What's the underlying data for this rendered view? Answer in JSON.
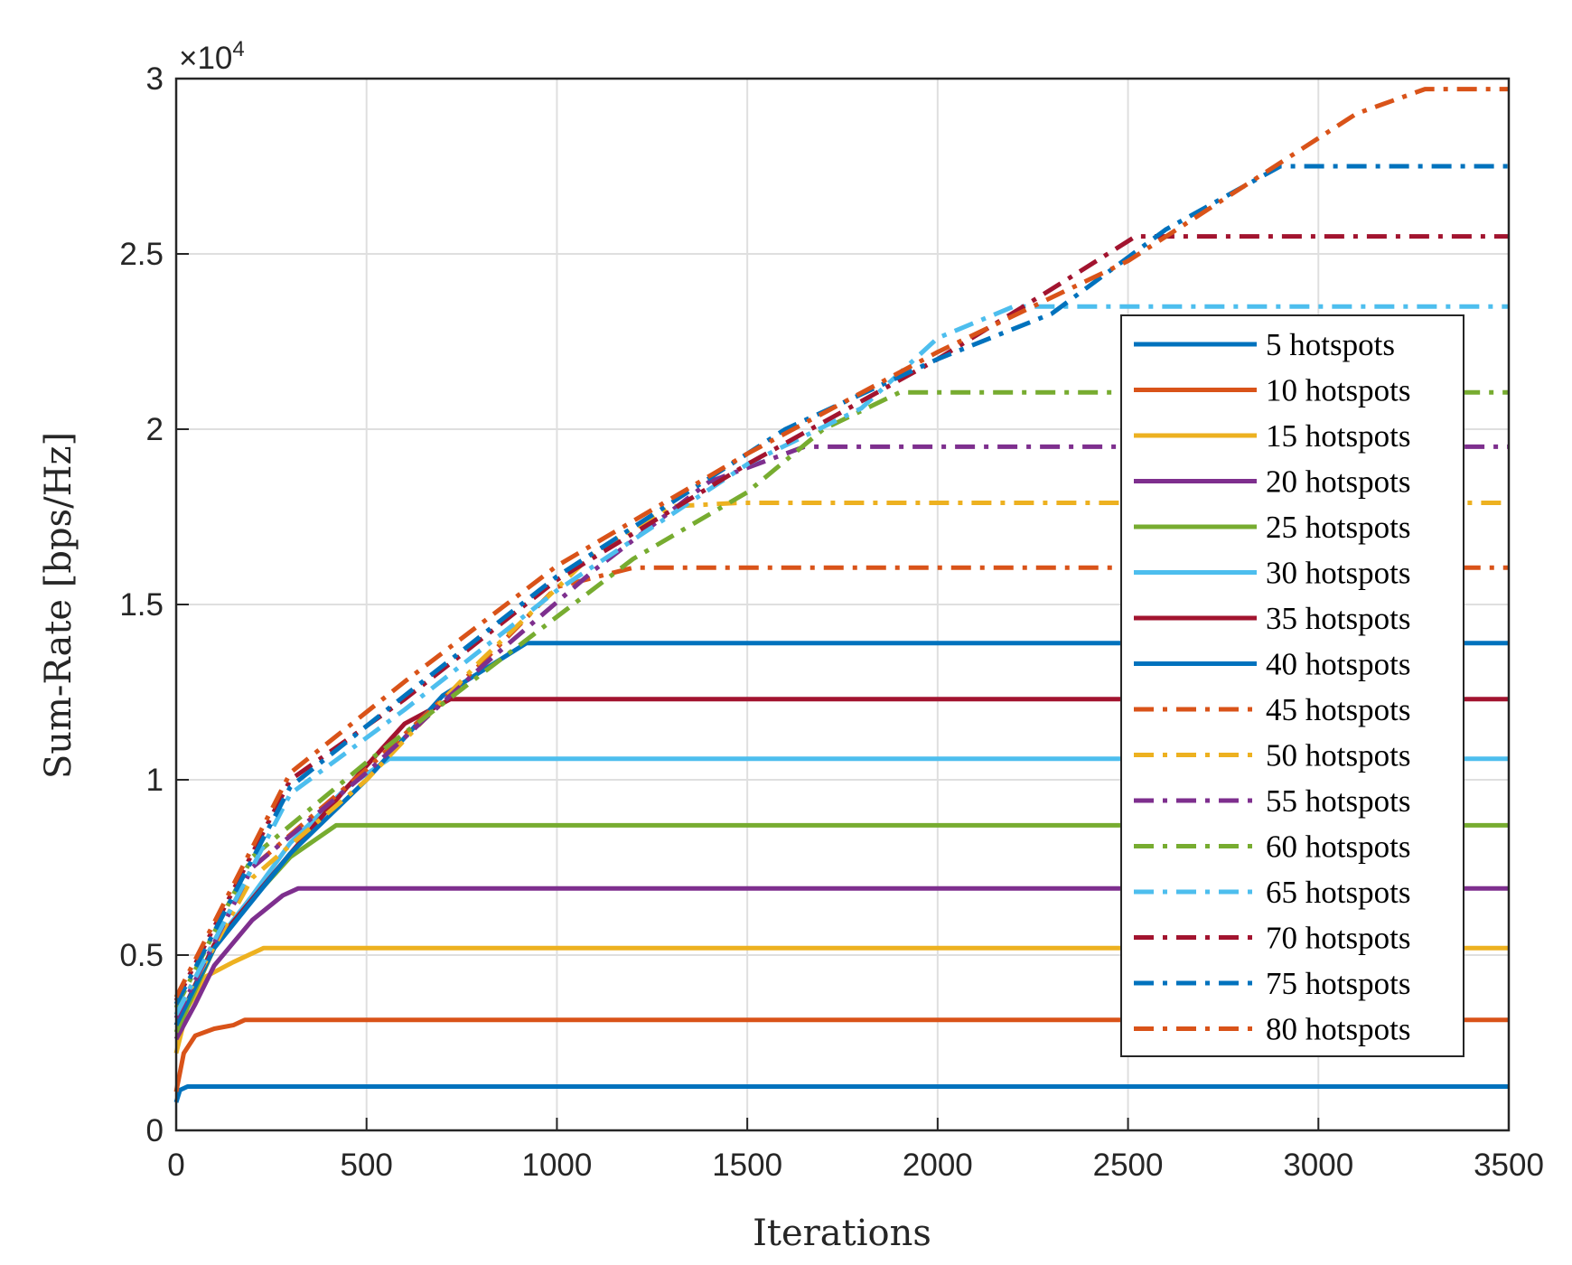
{
  "chart_data": {
    "type": "line",
    "xlabel": "Iterations",
    "ylabel": "Sum-Rate [bps/Hz]",
    "y_exponent_label": "×10^4",
    "xlim": [
      0,
      3500
    ],
    "ylim": [
      0,
      30000
    ],
    "xticks": [
      0,
      500,
      1000,
      1500,
      2000,
      2500,
      3000,
      3500
    ],
    "yticks": [
      0,
      5000,
      10000,
      15000,
      20000,
      25000,
      30000
    ],
    "ytick_labels": [
      "0",
      "0.5",
      "1",
      "1.5",
      "2",
      "2.5",
      "3"
    ],
    "grid": true,
    "legend_placement": "right",
    "series": [
      {
        "name": "5 hotspots",
        "color": "#0072BD",
        "style": "solid",
        "points": [
          [
            0,
            800
          ],
          [
            10,
            1150
          ],
          [
            30,
            1250
          ],
          [
            3500,
            1250
          ]
        ]
      },
      {
        "name": "10 hotspots",
        "color": "#D95319",
        "style": "solid",
        "points": [
          [
            0,
            1100
          ],
          [
            20,
            2200
          ],
          [
            50,
            2700
          ],
          [
            100,
            2900
          ],
          [
            150,
            3000
          ],
          [
            180,
            3150
          ],
          [
            3500,
            3150
          ]
        ]
      },
      {
        "name": "15 hotspots",
        "color": "#EDB120",
        "style": "solid",
        "points": [
          [
            0,
            2200
          ],
          [
            30,
            3500
          ],
          [
            80,
            4400
          ],
          [
            150,
            4800
          ],
          [
            230,
            5200
          ],
          [
            3500,
            5200
          ]
        ]
      },
      {
        "name": "20 hotspots",
        "color": "#7E2F8E",
        "style": "solid",
        "points": [
          [
            0,
            2600
          ],
          [
            50,
            3600
          ],
          [
            100,
            4700
          ],
          [
            200,
            6000
          ],
          [
            280,
            6700
          ],
          [
            320,
            6900
          ],
          [
            3500,
            6900
          ]
        ]
      },
      {
        "name": "25 hotspots",
        "color": "#77AC30",
        "style": "solid",
        "points": [
          [
            0,
            2800
          ],
          [
            100,
            5200
          ],
          [
            200,
            6600
          ],
          [
            300,
            7800
          ],
          [
            420,
            8700
          ],
          [
            3500,
            8700
          ]
        ]
      },
      {
        "name": "30 hotspots",
        "color": "#4DBEEE",
        "style": "solid",
        "points": [
          [
            0,
            3000
          ],
          [
            100,
            5300
          ],
          [
            200,
            6700
          ],
          [
            300,
            8200
          ],
          [
            450,
            9800
          ],
          [
            560,
            10600
          ],
          [
            3500,
            10600
          ]
        ]
      },
      {
        "name": "35 hotspots",
        "color": "#A2142F",
        "style": "solid",
        "points": [
          [
            0,
            3000
          ],
          [
            100,
            5300
          ],
          [
            200,
            6600
          ],
          [
            300,
            7900
          ],
          [
            450,
            9800
          ],
          [
            600,
            11600
          ],
          [
            720,
            12300
          ],
          [
            3500,
            12300
          ]
        ]
      },
      {
        "name": "40 hotspots",
        "color": "#0072BD",
        "style": "solid",
        "points": [
          [
            0,
            3000
          ],
          [
            100,
            5200
          ],
          [
            300,
            7900
          ],
          [
            500,
            10000
          ],
          [
            700,
            12400
          ],
          [
            920,
            13900
          ],
          [
            3500,
            13900
          ]
        ]
      },
      {
        "name": "45 hotspots",
        "color": "#D95319",
        "style": "dashdot",
        "points": [
          [
            0,
            3300
          ],
          [
            200,
            7500
          ],
          [
            500,
            10300
          ],
          [
            800,
            13300
          ],
          [
            1000,
            15500
          ],
          [
            1200,
            16050
          ],
          [
            3500,
            16050
          ]
        ]
      },
      {
        "name": "50 hotspots",
        "color": "#EDB120",
        "style": "dashdot",
        "points": [
          [
            0,
            3300
          ],
          [
            200,
            7200
          ],
          [
            500,
            10000
          ],
          [
            800,
            13400
          ],
          [
            1100,
            16500
          ],
          [
            1300,
            17800
          ],
          [
            1480,
            17900
          ],
          [
            3500,
            17900
          ]
        ]
      },
      {
        "name": "55 hotspots",
        "color": "#7E2F8E",
        "style": "dashdot",
        "points": [
          [
            0,
            3200
          ],
          [
            200,
            7500
          ],
          [
            500,
            10200
          ],
          [
            800,
            13200
          ],
          [
            1100,
            16000
          ],
          [
            1400,
            18500
          ],
          [
            1650,
            19500
          ],
          [
            3500,
            19500
          ]
        ]
      },
      {
        "name": "60 hotspots",
        "color": "#77AC30",
        "style": "dashdot",
        "points": [
          [
            0,
            3500
          ],
          [
            200,
            7800
          ],
          [
            500,
            10500
          ],
          [
            800,
            13000
          ],
          [
            1200,
            16300
          ],
          [
            1500,
            18200
          ],
          [
            1700,
            20000
          ],
          [
            1900,
            21050
          ],
          [
            3500,
            21050
          ]
        ]
      },
      {
        "name": "65 hotspots",
        "color": "#4DBEEE",
        "style": "dashdot",
        "points": [
          [
            0,
            3300
          ],
          [
            300,
            9600
          ],
          [
            600,
            12000
          ],
          [
            1000,
            15400
          ],
          [
            1500,
            19000
          ],
          [
            1800,
            20600
          ],
          [
            2000,
            22600
          ],
          [
            2200,
            23500
          ],
          [
            3500,
            23500
          ]
        ]
      },
      {
        "name": "70 hotspots",
        "color": "#A2142F",
        "style": "dashdot",
        "points": [
          [
            0,
            3700
          ],
          [
            300,
            10000
          ],
          [
            600,
            12300
          ],
          [
            1000,
            15700
          ],
          [
            1500,
            19000
          ],
          [
            2000,
            22000
          ],
          [
            2300,
            24000
          ],
          [
            2520,
            25500
          ],
          [
            3500,
            25500
          ]
        ]
      },
      {
        "name": "75 hotspots",
        "color": "#0072BD",
        "style": "dashdot",
        "points": [
          [
            0,
            3600
          ],
          [
            300,
            9800
          ],
          [
            600,
            12400
          ],
          [
            1000,
            15800
          ],
          [
            1600,
            20000
          ],
          [
            2000,
            22000
          ],
          [
            2300,
            23300
          ],
          [
            2600,
            25700
          ],
          [
            2900,
            27500
          ],
          [
            3500,
            27500
          ]
        ]
      },
      {
        "name": "80 hotspots",
        "color": "#D95319",
        "style": "dashdot",
        "points": [
          [
            0,
            3800
          ],
          [
            300,
            10200
          ],
          [
            600,
            12800
          ],
          [
            1000,
            16100
          ],
          [
            1500,
            19300
          ],
          [
            2000,
            22200
          ],
          [
            2500,
            24800
          ],
          [
            2800,
            26900
          ],
          [
            3100,
            29000
          ],
          [
            3280,
            29700
          ],
          [
            3500,
            29700
          ]
        ]
      }
    ]
  }
}
